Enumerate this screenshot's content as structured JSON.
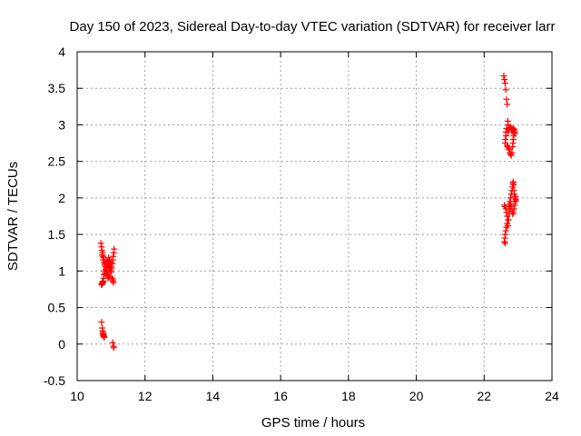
{
  "chart_data": {
    "type": "scatter",
    "title": "Day 150 of 2023, Sidereal Day-to-day VTEC variation (SDTVAR) for receiver larr",
    "xlabel": "GPS time / hours",
    "ylabel": "SDTVAR / TECUs",
    "xlim": [
      10,
      24
    ],
    "ylim": [
      -0.5,
      4
    ],
    "xticks": [
      "10",
      "12",
      "14",
      "16",
      "18",
      "20",
      "22",
      "24"
    ],
    "yticks": [
      "-0.5",
      "0",
      "0.5",
      "1",
      "1.5",
      "2",
      "2.5",
      "3",
      "3.5",
      "4"
    ],
    "grid": true,
    "marker": "+",
    "color": "#ff0000",
    "series": [
      {
        "points": [
          [
            10.7,
            1.38
          ],
          [
            10.72,
            1.33
          ],
          [
            10.73,
            1.28
          ],
          [
            10.75,
            1.25
          ],
          [
            10.74,
            1.22
          ],
          [
            10.76,
            1.2
          ],
          [
            10.78,
            1.18
          ],
          [
            10.77,
            1.15
          ],
          [
            10.8,
            1.12
          ],
          [
            10.82,
            1.1
          ],
          [
            10.81,
            1.08
          ],
          [
            10.84,
            1.06
          ],
          [
            10.86,
            1.04
          ],
          [
            10.85,
            1.02
          ],
          [
            10.88,
            1.0
          ],
          [
            10.87,
            0.98
          ],
          [
            10.9,
            0.96
          ],
          [
            10.89,
            0.94
          ],
          [
            10.92,
            0.92
          ],
          [
            10.91,
            0.9
          ],
          [
            10.8,
            1.0
          ],
          [
            10.82,
            0.97
          ],
          [
            10.79,
            0.95
          ],
          [
            10.78,
            0.9
          ],
          [
            10.77,
            0.86
          ],
          [
            10.76,
            0.84
          ],
          [
            10.74,
            0.82
          ],
          [
            10.72,
            0.81
          ],
          [
            10.73,
            0.83
          ],
          [
            10.75,
            0.85
          ],
          [
            10.85,
            1.15
          ],
          [
            10.88,
            1.12
          ],
          [
            10.9,
            1.1
          ],
          [
            10.92,
            1.08
          ],
          [
            10.94,
            1.05
          ],
          [
            10.96,
            1.02
          ],
          [
            10.98,
            1.0
          ],
          [
            11.0,
            0.98
          ],
          [
            11.02,
            1.04
          ],
          [
            11.04,
            1.1
          ],
          [
            11.05,
            1.15
          ],
          [
            11.06,
            1.2
          ],
          [
            11.08,
            1.25
          ],
          [
            11.09,
            1.3
          ],
          [
            11.0,
            1.12
          ],
          [
            10.97,
            1.1
          ],
          [
            10.95,
            1.15
          ],
          [
            10.93,
            1.18
          ],
          [
            10.91,
            1.14
          ],
          [
            10.99,
            1.06
          ],
          [
            11.03,
            0.9
          ],
          [
            11.05,
            0.86
          ],
          [
            11.07,
            0.84
          ],
          [
            11.06,
            0.88
          ],
          [
            10.95,
            0.92
          ],
          [
            10.72,
            0.3
          ],
          [
            10.74,
            0.22
          ],
          [
            10.75,
            0.18
          ],
          [
            10.76,
            0.14
          ],
          [
            10.77,
            0.12
          ],
          [
            10.78,
            0.11
          ],
          [
            10.79,
            0.1
          ],
          [
            10.8,
            0.09
          ],
          [
            10.78,
            0.13
          ],
          [
            10.76,
            0.16
          ],
          [
            11.05,
            0.02
          ],
          [
            11.07,
            -0.03
          ],
          [
            11.08,
            -0.05
          ],
          [
            22.58,
            3.67
          ],
          [
            22.6,
            3.62
          ],
          [
            22.62,
            3.57
          ],
          [
            22.64,
            3.48
          ],
          [
            22.66,
            3.35
          ],
          [
            22.68,
            3.28
          ],
          [
            22.7,
            3.05
          ],
          [
            22.71,
            3.0
          ],
          [
            22.66,
            2.95
          ],
          [
            22.64,
            2.9
          ],
          [
            22.65,
            2.85
          ],
          [
            22.63,
            2.8
          ],
          [
            22.62,
            2.75
          ],
          [
            22.68,
            2.72
          ],
          [
            22.7,
            2.7
          ],
          [
            22.72,
            2.68
          ],
          [
            22.74,
            2.66
          ],
          [
            22.76,
            2.62
          ],
          [
            22.78,
            2.6
          ],
          [
            22.8,
            2.58
          ],
          [
            22.82,
            2.62
          ],
          [
            22.84,
            2.7
          ],
          [
            22.85,
            2.75
          ],
          [
            22.86,
            2.8
          ],
          [
            22.87,
            2.85
          ],
          [
            22.88,
            2.88
          ],
          [
            22.89,
            2.9
          ],
          [
            22.9,
            2.92
          ],
          [
            22.8,
            2.95
          ],
          [
            22.78,
            2.97
          ],
          [
            22.75,
            2.96
          ],
          [
            22.72,
            2.93
          ],
          [
            22.7,
            2.9
          ],
          [
            22.83,
            2.93
          ],
          [
            22.85,
            2.95
          ],
          [
            22.88,
            2.94
          ],
          [
            22.91,
            2.88
          ],
          [
            22.6,
            1.9
          ],
          [
            22.62,
            1.88
          ],
          [
            22.64,
            1.85
          ],
          [
            22.66,
            1.8
          ],
          [
            22.68,
            1.75
          ],
          [
            22.7,
            1.7
          ],
          [
            22.68,
            1.65
          ],
          [
            22.66,
            1.6
          ],
          [
            22.64,
            1.55
          ],
          [
            22.62,
            1.5
          ],
          [
            22.61,
            1.45
          ],
          [
            22.6,
            1.4
          ],
          [
            22.62,
            1.38
          ],
          [
            22.72,
            1.85
          ],
          [
            22.74,
            1.9
          ],
          [
            22.76,
            1.95
          ],
          [
            22.78,
            2.0
          ],
          [
            22.8,
            2.05
          ],
          [
            22.82,
            2.1
          ],
          [
            22.84,
            2.15
          ],
          [
            22.85,
            2.2
          ],
          [
            22.86,
            2.22
          ],
          [
            22.87,
            2.18
          ],
          [
            22.88,
            2.1
          ],
          [
            22.89,
            2.05
          ],
          [
            22.9,
            2.0
          ],
          [
            22.91,
            1.95
          ],
          [
            22.9,
            1.9
          ],
          [
            22.88,
            1.85
          ],
          [
            22.86,
            1.8
          ],
          [
            22.84,
            1.78
          ],
          [
            22.82,
            1.82
          ],
          [
            22.8,
            1.88
          ],
          [
            22.78,
            1.92
          ],
          [
            22.76,
            1.85
          ],
          [
            22.74,
            1.78
          ],
          [
            22.72,
            1.7
          ],
          [
            22.7,
            1.62
          ],
          [
            22.92,
            2.02
          ],
          [
            22.93,
            1.98
          ],
          [
            22.94,
            1.96
          ]
        ]
      }
    ]
  }
}
